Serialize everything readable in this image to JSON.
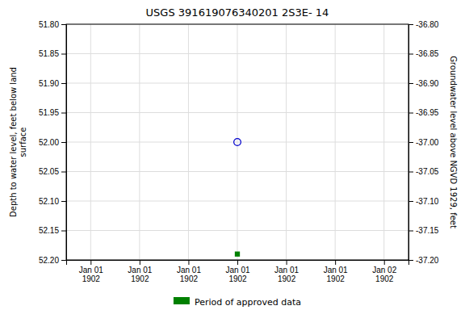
{
  "chart_data": {
    "type": "scatter",
    "title": "USGS 391619076340201 2S3E- 14",
    "ylabel": "Depth to water level, feet below land\nsurface",
    "y2label": "Groundwater level above NGVD 1929, feet",
    "categories": [
      "Jan 01\n1902",
      "Jan 01\n1902",
      "Jan 01\n1902",
      "Jan 01\n1902",
      "Jan 01\n1902",
      "Jan 01\n1902",
      "Jan 02\n1902"
    ],
    "ylim": [
      52.2,
      51.8
    ],
    "yticks": [
      {
        "value": 51.8,
        "label": "51.80"
      },
      {
        "value": 51.85,
        "label": "51.85"
      },
      {
        "value": 51.9,
        "label": "51.90"
      },
      {
        "value": 51.95,
        "label": "51.95"
      },
      {
        "value": 52.0,
        "label": "52.00"
      },
      {
        "value": 52.05,
        "label": "52.05"
      },
      {
        "value": 52.1,
        "label": "52.10"
      },
      {
        "value": 52.15,
        "label": "52.15"
      },
      {
        "value": 52.2,
        "label": "52.20"
      }
    ],
    "y2lim": [
      -37.2,
      -36.8
    ],
    "y2ticks": [
      {
        "value": -36.8,
        "label": "-36.80"
      },
      {
        "value": -36.85,
        "label": "-36.85"
      },
      {
        "value": -36.9,
        "label": "-36.90"
      },
      {
        "value": -36.95,
        "label": "-36.95"
      },
      {
        "value": -37.0,
        "label": "-37.00"
      },
      {
        "value": -37.05,
        "label": "-37.05"
      },
      {
        "value": -37.1,
        "label": "-37.10"
      },
      {
        "value": -37.15,
        "label": "-37.15"
      },
      {
        "value": -37.2,
        "label": "-37.20"
      }
    ],
    "grid": true,
    "legend": "bottom",
    "series": [
      {
        "color": "#0000cc",
        "marker": "circle-open",
        "values": [
          null,
          null,
          null,
          52.0,
          null,
          null,
          null
        ]
      },
      {
        "name": "Period of approved data",
        "color": "#008000",
        "marker": "square",
        "values": [
          null,
          null,
          null,
          52.19,
          null,
          null,
          null
        ]
      }
    ]
  }
}
